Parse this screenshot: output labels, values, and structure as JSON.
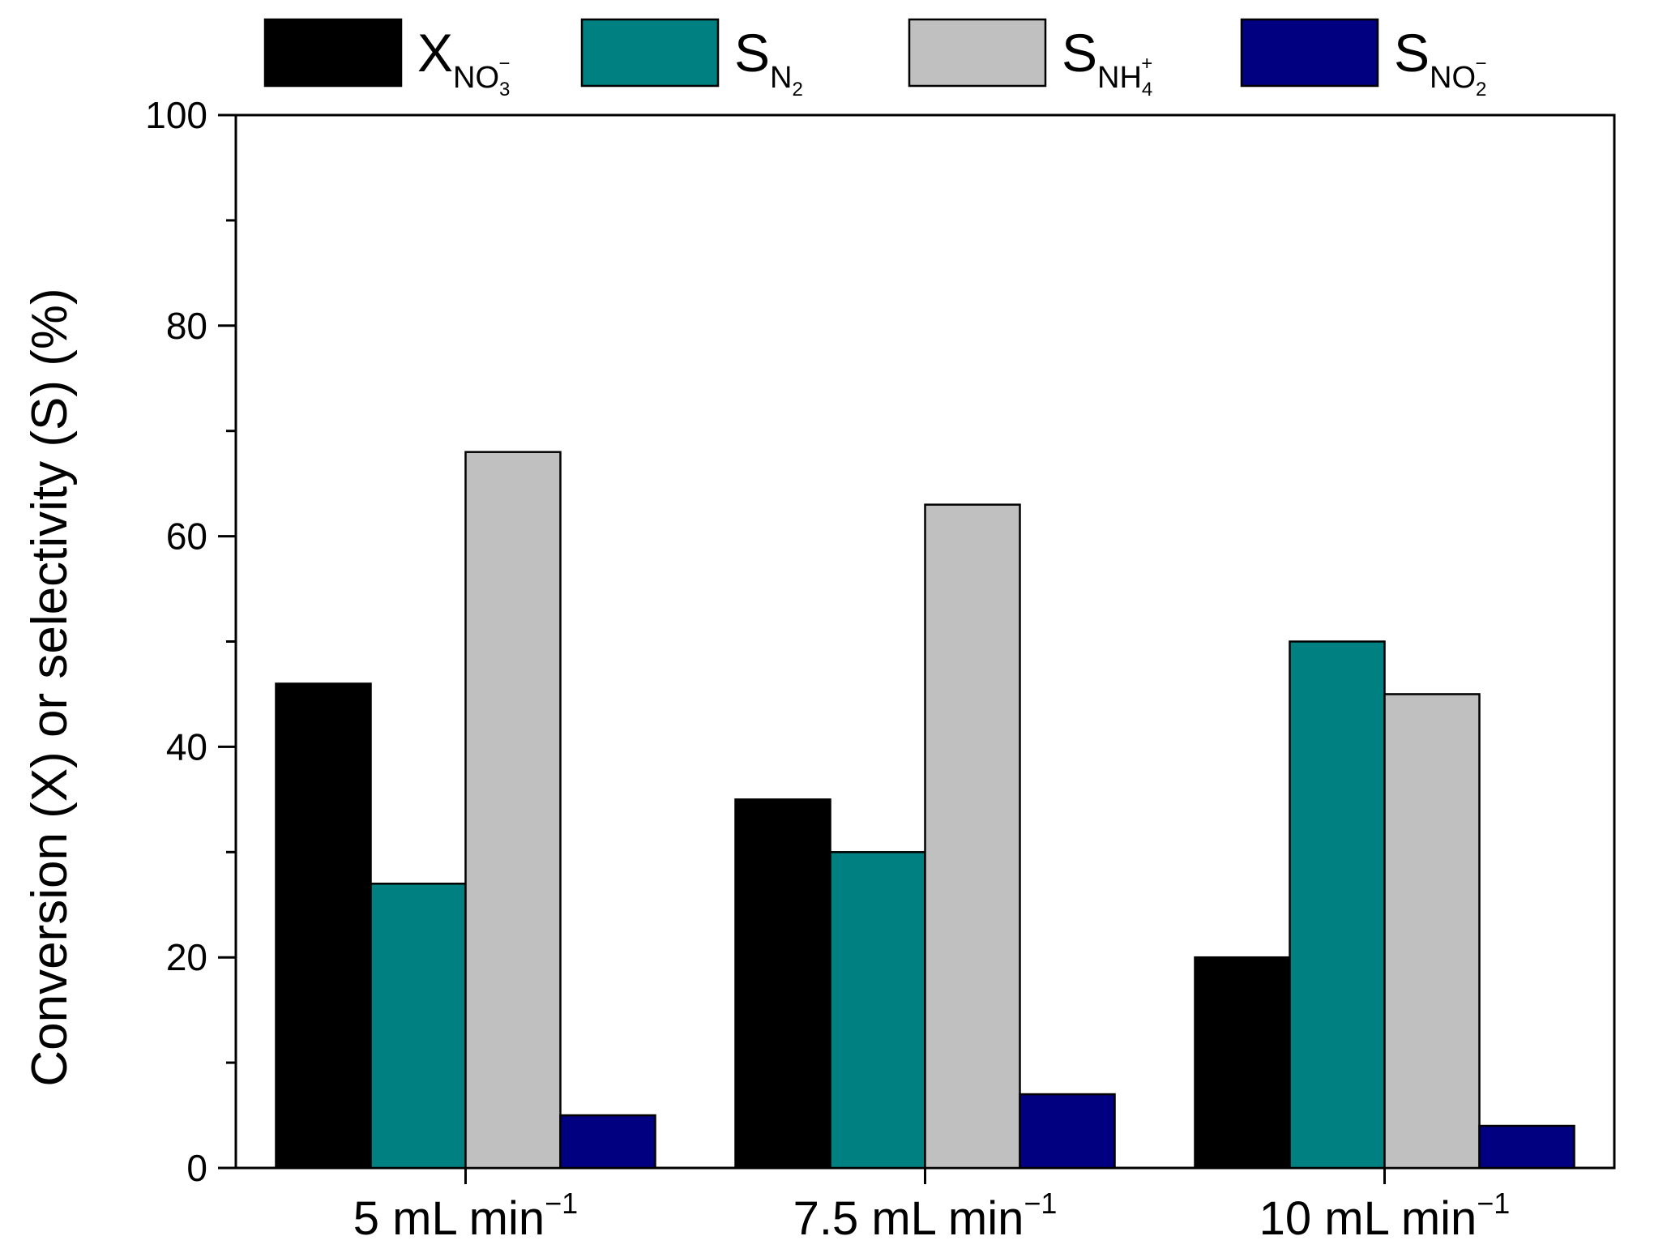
{
  "chart_data": {
    "type": "bar",
    "categories": [
      {
        "main": "5 mL min",
        "sup": "−1"
      },
      {
        "main": "7.5 mL min",
        "sup": "−1"
      },
      {
        "main": "10 mL min",
        "sup": "−1"
      }
    ],
    "series": [
      {
        "name": {
          "main": "X",
          "sub": "NO",
          "subsub": "3",
          "sup": "−"
        },
        "color": "#000000",
        "values": [
          46,
          35,
          20
        ]
      },
      {
        "name": {
          "main": "S",
          "sub": "N",
          "subsub": "2",
          "sup": ""
        },
        "color": "#008080",
        "values": [
          27,
          30,
          50
        ]
      },
      {
        "name": {
          "main": "S",
          "sub": "NH",
          "subsub": "4",
          "sup": "+"
        },
        "color": "#c0c0c0",
        "values": [
          68,
          63,
          45
        ]
      },
      {
        "name": {
          "main": "S",
          "sub": "NO",
          "subsub": "2",
          "sup": "−"
        },
        "color": "#000080",
        "values": [
          5,
          7,
          4
        ]
      }
    ],
    "ylabel": "Conversion (X) or selectivity (S) (%)",
    "ylim": [
      0,
      100
    ],
    "yticks": [
      "0",
      "20",
      "40",
      "60",
      "80",
      "100"
    ],
    "legend_position": "top"
  }
}
